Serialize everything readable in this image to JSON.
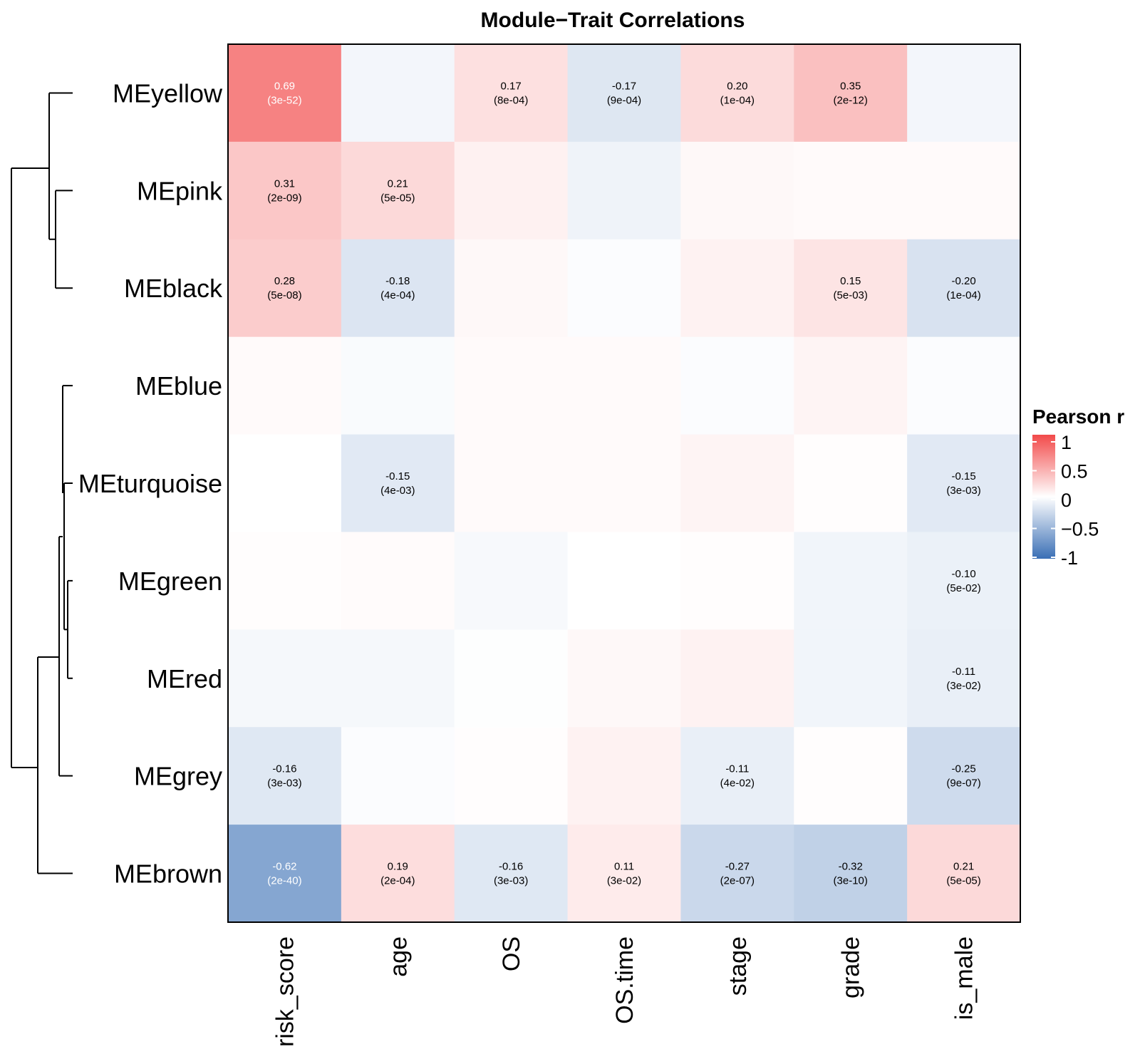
{
  "chart_data": {
    "type": "heatmap",
    "title": "Module−Trait Correlations",
    "rows": [
      "MEyellow",
      "MEpink",
      "MEblack",
      "MEblue",
      "MEturquoise",
      "MEgreen",
      "MEred",
      "MEgrey",
      "MEbrown"
    ],
    "columns": [
      "risk_score",
      "age",
      "OS",
      "OS.time",
      "stage",
      "grade",
      "is_male"
    ],
    "values": [
      [
        0.69,
        -0.06,
        0.17,
        -0.17,
        0.2,
        0.35,
        -0.06
      ],
      [
        0.31,
        0.21,
        0.08,
        -0.08,
        0.04,
        0.03,
        0.03
      ],
      [
        0.28,
        -0.18,
        0.04,
        -0.02,
        0.07,
        0.15,
        -0.2
      ],
      [
        0.03,
        -0.03,
        0.03,
        0.03,
        -0.02,
        0.06,
        -0.02
      ],
      [
        0.0,
        -0.15,
        0.03,
        0.03,
        0.06,
        0.01,
        -0.15
      ],
      [
        0.01,
        0.02,
        -0.04,
        0.0,
        0.01,
        -0.07,
        -0.1
      ],
      [
        -0.05,
        -0.05,
        -0.01,
        0.04,
        0.07,
        -0.07,
        -0.11
      ],
      [
        -0.16,
        -0.02,
        0.01,
        0.07,
        -0.11,
        0.01,
        -0.25
      ],
      [
        -0.62,
        0.19,
        -0.16,
        0.11,
        -0.27,
        -0.32,
        0.21
      ]
    ],
    "labels": [
      [
        {
          "r": "0.69",
          "p": "(3e-52)"
        },
        null,
        {
          "r": "0.17",
          "p": "(8e-04)"
        },
        {
          "r": "-0.17",
          "p": "(9e-04)"
        },
        {
          "r": "0.20",
          "p": "(1e-04)"
        },
        {
          "r": "0.35",
          "p": "(2e-12)"
        },
        null
      ],
      [
        {
          "r": "0.31",
          "p": "(2e-09)"
        },
        {
          "r": "0.21",
          "p": "(5e-05)"
        },
        null,
        null,
        null,
        null,
        null
      ],
      [
        {
          "r": "0.28",
          "p": "(5e-08)"
        },
        {
          "r": "-0.18",
          "p": "(4e-04)"
        },
        null,
        null,
        null,
        {
          "r": "0.15",
          "p": "(5e-03)"
        },
        {
          "r": "-0.20",
          "p": "(1e-04)"
        }
      ],
      [
        null,
        null,
        null,
        null,
        null,
        null,
        null
      ],
      [
        null,
        {
          "r": "-0.15",
          "p": "(4e-03)"
        },
        null,
        null,
        null,
        null,
        {
          "r": "-0.15",
          "p": "(3e-03)"
        }
      ],
      [
        null,
        null,
        null,
        null,
        null,
        null,
        {
          "r": "-0.10",
          "p": "(5e-02)"
        }
      ],
      [
        null,
        null,
        null,
        null,
        null,
        null,
        {
          "r": "-0.11",
          "p": "(3e-02)"
        }
      ],
      [
        {
          "r": "-0.16",
          "p": "(3e-03)"
        },
        null,
        null,
        null,
        {
          "r": "-0.11",
          "p": "(4e-02)"
        },
        null,
        {
          "r": "-0.25",
          "p": "(9e-07)"
        }
      ],
      [
        {
          "r": "-0.62",
          "p": "(2e-40)"
        },
        {
          "r": "0.19",
          "p": "(2e-04)"
        },
        {
          "r": "-0.16",
          "p": "(3e-03)"
        },
        {
          "r": "0.11",
          "p": "(3e-02)"
        },
        {
          "r": "-0.27",
          "p": "(2e-07)"
        },
        {
          "r": "-0.32",
          "p": "(3e-10)"
        },
        {
          "r": "0.21",
          "p": "(5e-05)"
        }
      ]
    ],
    "color_scale": {
      "low": "#3A6FB5",
      "mid": "#FFFFFF",
      "high": "#F24A4A",
      "range": [
        -1,
        1
      ]
    },
    "legend": {
      "title": "Pearson r",
      "ticks": [
        "1",
        "0.5",
        "0",
        "−0.5",
        "-1"
      ],
      "tick_values": [
        1,
        0.5,
        0,
        -0.5,
        -1
      ],
      "placement": "right"
    },
    "row_dendrogram": true
  }
}
